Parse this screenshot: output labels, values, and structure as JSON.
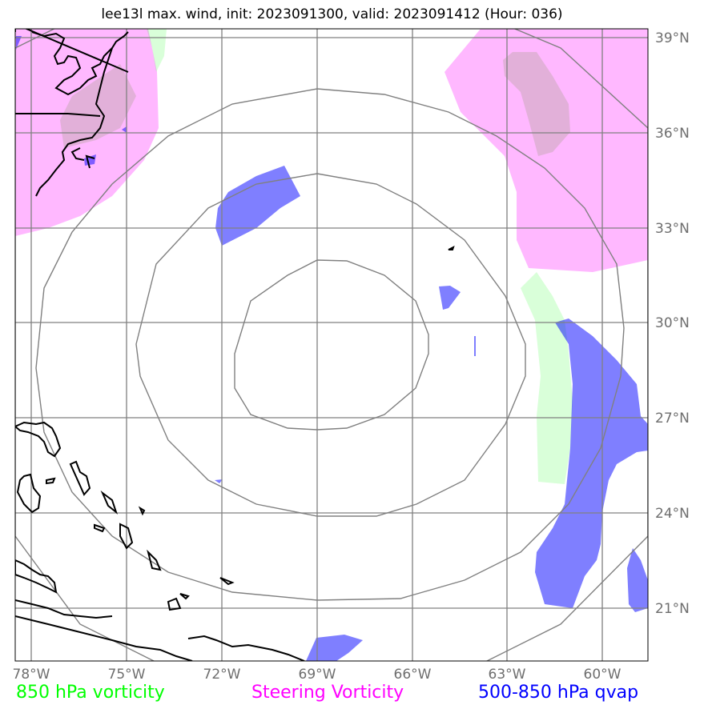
{
  "title": "lee13l max. wind, init: 2023091300, valid: 2023091412 (Hour: 036)",
  "latitude_labels": [
    "39°N",
    "36°N",
    "33°N",
    "30°N",
    "27°N",
    "24°N",
    "21°N"
  ],
  "longitude_labels": [
    "78°W",
    "75°W",
    "72°W",
    "69°W",
    "66°W",
    "63°W",
    "60°W"
  ],
  "legend": {
    "vorticity_850": "850 hPa vorticity",
    "steering_vorticity": "Steering Vorticity",
    "qvap_500_850": "500-850 hPa qvap"
  },
  "colors": {
    "vorticity_850": "#00ff00",
    "steering_vorticity": "#ff00ff",
    "qvap_500_850": "#0000ff",
    "grid": "#808080",
    "range_rings": "#808080",
    "coastline": "#000000"
  }
}
